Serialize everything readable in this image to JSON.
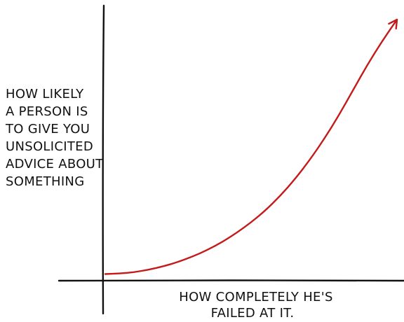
{
  "chart_data": {
    "type": "line",
    "title": "",
    "xlabel": "HOW COMPLETELY HE'S FAILED AT IT.",
    "ylabel": "HOW LIKELY A PERSON IS TO GIVE YOU UNSOLICITED ADVICE ABOUT SOMETHING",
    "xlabel_lines": [
      "HOW COMPLETELY HE'S",
      "FAILED AT IT."
    ],
    "ylabel_lines": [
      "HOW LIKELY",
      "A PERSON IS",
      "TO GIVE YOU",
      "UNSOLICITED",
      "ADVICE ABOUT",
      "SOMETHING"
    ],
    "x_ticks": [],
    "y_ticks": [],
    "grid": false,
    "legend": "none",
    "xlim": [
      0,
      1
    ],
    "ylim": [
      0,
      1
    ],
    "series": [
      {
        "color": "#c41a1a",
        "x": [
          0.0,
          0.05,
          0.1,
          0.15,
          0.2,
          0.25,
          0.3,
          0.35,
          0.4,
          0.45,
          0.5,
          0.55,
          0.6,
          0.65,
          0.7,
          0.75,
          0.8,
          0.85,
          0.9,
          0.95,
          1.0
        ],
        "y": [
          0.015,
          0.017,
          0.022,
          0.032,
          0.045,
          0.062,
          0.083,
          0.108,
          0.138,
          0.174,
          0.215,
          0.262,
          0.318,
          0.382,
          0.455,
          0.537,
          0.628,
          0.728,
          0.828,
          0.918,
          1.0
        ],
        "arrow_end": true
      }
    ]
  }
}
